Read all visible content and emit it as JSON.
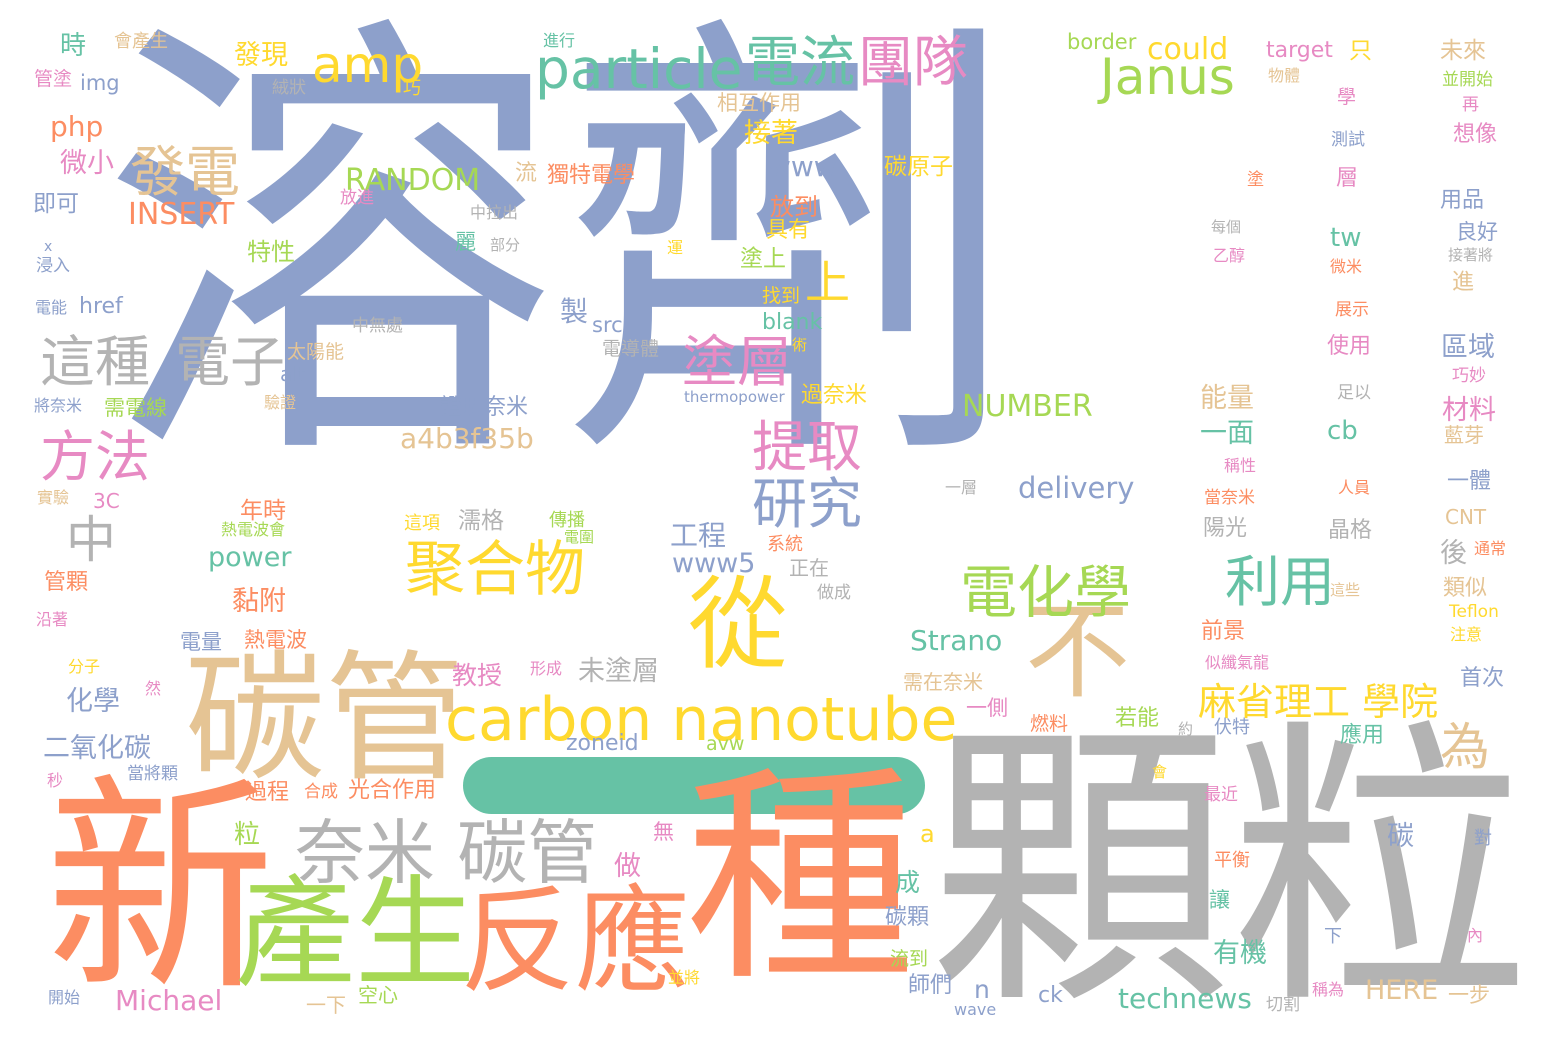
{
  "palette": {
    "slate": "#8DA0CB",
    "orange": "#FC8D62",
    "green": "#66C2A5",
    "lime": "#A6D854",
    "yellow": "#FFD92F",
    "tan": "#E5C494",
    "gray": "#B3B3B3",
    "pink": "#E78AC3"
  },
  "dash_color": "#66C2A5",
  "words": [
    {
      "text": "溶劑",
      "color": "slate"
    },
    {
      "text": "顆粒",
      "color": "gray"
    },
    {
      "text": "新",
      "color": "orange"
    },
    {
      "text": "種",
      "color": "orange"
    },
    {
      "text": "碳管",
      "color": "tan"
    },
    {
      "text": "產生",
      "color": "lime"
    },
    {
      "text": "反應",
      "color": "orange"
    },
    {
      "text": "carbon nanotube",
      "color": "yellow"
    },
    {
      "text": "奈米 碳管",
      "color": "gray"
    },
    {
      "text": "從",
      "color": "yellow"
    },
    {
      "text": "不",
      "color": "tan"
    },
    {
      "text": "particle",
      "color": "green"
    },
    {
      "text": "電流",
      "color": "green"
    },
    {
      "text": "團隊",
      "color": "pink"
    },
    {
      "text": "amp",
      "color": "yellow"
    },
    {
      "text": "Janus",
      "color": "lime"
    },
    {
      "text": "聚合物",
      "color": "yellow"
    },
    {
      "text": "電化學",
      "color": "lime"
    },
    {
      "text": "利用",
      "color": "green"
    },
    {
      "text": "提取",
      "color": "pink"
    },
    {
      "text": "研究",
      "color": "slate"
    },
    {
      "text": "塗層",
      "color": "pink"
    },
    {
      "text": "這種",
      "color": "gray"
    },
    {
      "text": "電子",
      "color": "gray"
    },
    {
      "text": "方法",
      "color": "pink"
    },
    {
      "text": "發電",
      "color": "tan"
    },
    {
      "text": "麻省理工 學院",
      "color": "yellow"
    },
    {
      "text": "為",
      "color": "tan"
    },
    {
      "text": "中",
      "color": "gray"
    },
    {
      "text": "上",
      "color": "yellow"
    },
    {
      "text": "RANDOM",
      "color": "lime"
    },
    {
      "text": "INSERT",
      "color": "orange"
    },
    {
      "text": "NUMBER",
      "color": "lime"
    },
    {
      "text": "a4b3f35b",
      "color": "tan"
    },
    {
      "text": "delivery",
      "color": "slate"
    },
    {
      "text": "Strano",
      "color": "green"
    },
    {
      "text": "Michael",
      "color": "pink"
    },
    {
      "text": "technews",
      "color": "green"
    },
    {
      "text": "HERE",
      "color": "tan"
    },
    {
      "text": "power",
      "color": "green"
    },
    {
      "text": "www5",
      "color": "slate"
    },
    {
      "text": "www",
      "color": "slate"
    },
    {
      "text": "zoneid",
      "color": "slate"
    },
    {
      "text": "avw",
      "color": "lime"
    },
    {
      "text": "could",
      "color": "yellow"
    },
    {
      "text": "border",
      "color": "lime"
    },
    {
      "text": "target",
      "color": "pink"
    },
    {
      "text": "img",
      "color": "slate"
    },
    {
      "text": "php",
      "color": "orange"
    },
    {
      "text": "href",
      "color": "slate"
    },
    {
      "text": "alt",
      "color": "slate"
    },
    {
      "text": "blank",
      "color": "green"
    },
    {
      "text": "src",
      "color": "slate"
    },
    {
      "text": "thermopower",
      "color": "slate"
    },
    {
      "text": "tw",
      "color": "green"
    },
    {
      "text": "cb",
      "color": "green"
    },
    {
      "text": "ck",
      "color": "slate"
    },
    {
      "text": "n",
      "color": "slate"
    },
    {
      "text": "a",
      "color": "yellow"
    },
    {
      "text": "wave",
      "color": "slate"
    },
    {
      "text": "3C",
      "color": "pink"
    },
    {
      "text": "CNT",
      "color": "tan"
    },
    {
      "text": "Teflon",
      "color": "yellow"
    },
    {
      "text": "x",
      "color": "slate"
    },
    {
      "text": "時",
      "color": "green"
    },
    {
      "text": "發現",
      "color": "yellow"
    },
    {
      "text": "會產生",
      "color": "tan"
    },
    {
      "text": "進行",
      "color": "green"
    },
    {
      "text": "管塗",
      "color": "pink"
    },
    {
      "text": "絨狀",
      "color": "gray"
    },
    {
      "text": "巧",
      "color": "yellow"
    },
    {
      "text": "相互作用",
      "color": "tan"
    },
    {
      "text": "接著",
      "color": "yellow"
    },
    {
      "text": "微小",
      "color": "pink"
    },
    {
      "text": "即可",
      "color": "slate"
    },
    {
      "text": "浸入",
      "color": "slate"
    },
    {
      "text": "電能",
      "color": "slate"
    },
    {
      "text": "特性",
      "color": "lime"
    },
    {
      "text": "獨特電學",
      "color": "orange"
    },
    {
      "text": "流",
      "color": "tan"
    },
    {
      "text": "放進",
      "color": "pink"
    },
    {
      "text": "中拉出",
      "color": "gray"
    },
    {
      "text": "麗",
      "color": "green"
    },
    {
      "text": "部分",
      "color": "gray"
    },
    {
      "text": "碳原子",
      "color": "yellow"
    },
    {
      "text": "放到",
      "color": "orange"
    },
    {
      "text": "具有",
      "color": "yellow"
    },
    {
      "text": "塗上",
      "color": "lime"
    },
    {
      "text": "找到",
      "color": "yellow"
    },
    {
      "text": "製",
      "color": "slate"
    },
    {
      "text": "中無處",
      "color": "gray"
    },
    {
      "text": "太陽能",
      "color": "tan"
    },
    {
      "text": "電導體",
      "color": "gray"
    },
    {
      "text": "術",
      "color": "yellow"
    },
    {
      "text": "過奈米",
      "color": "yellow"
    },
    {
      "text": "將奈米",
      "color": "slate"
    },
    {
      "text": "需電線",
      "color": "lime"
    },
    {
      "text": "驗證",
      "color": "tan"
    },
    {
      "text": "證明奈米",
      "color": "slate"
    },
    {
      "text": "實驗",
      "color": "tan"
    },
    {
      "text": "熱電波會",
      "color": "lime"
    },
    {
      "text": "年時",
      "color": "orange"
    },
    {
      "text": "濡格",
      "color": "gray"
    },
    {
      "text": "傳播",
      "color": "lime"
    },
    {
      "text": "電圍",
      "color": "lime"
    },
    {
      "text": "這項",
      "color": "yellow"
    },
    {
      "text": "系統",
      "color": "orange"
    },
    {
      "text": "工程",
      "color": "slate"
    },
    {
      "text": "正在",
      "color": "gray"
    },
    {
      "text": "做成",
      "color": "gray"
    },
    {
      "text": "管顆",
      "color": "orange"
    },
    {
      "text": "黏附",
      "color": "orange"
    },
    {
      "text": "電量",
      "color": "slate"
    },
    {
      "text": "熱電波",
      "color": "orange"
    },
    {
      "text": "沿著",
      "color": "pink"
    },
    {
      "text": "分子",
      "color": "yellow"
    },
    {
      "text": "然",
      "color": "pink"
    },
    {
      "text": "形成",
      "color": "pink"
    },
    {
      "text": "未塗層",
      "color": "gray"
    },
    {
      "text": "教授",
      "color": "pink"
    },
    {
      "text": "需在奈米",
      "color": "tan"
    },
    {
      "text": "化學",
      "color": "slate"
    },
    {
      "text": "一側",
      "color": "pink"
    },
    {
      "text": "燃料",
      "color": "orange"
    },
    {
      "text": "若能",
      "color": "lime"
    },
    {
      "text": "約",
      "color": "gray"
    },
    {
      "text": "伏特",
      "color": "slate"
    },
    {
      "text": "應用",
      "color": "green"
    },
    {
      "text": "二氧化碳",
      "color": "slate"
    },
    {
      "text": "秒",
      "color": "pink"
    },
    {
      "text": "當將顆",
      "color": "slate"
    },
    {
      "text": "過程",
      "color": "orange"
    },
    {
      "text": "合成",
      "color": "orange"
    },
    {
      "text": "光合作用",
      "color": "orange"
    },
    {
      "text": "粒",
      "color": "lime"
    },
    {
      "text": "無",
      "color": "pink"
    },
    {
      "text": "做",
      "color": "pink"
    },
    {
      "text": "成",
      "color": "green"
    },
    {
      "text": "碳顆",
      "color": "slate"
    },
    {
      "text": "流到",
      "color": "lime"
    },
    {
      "text": "師們",
      "color": "slate"
    },
    {
      "text": "一下",
      "color": "tan"
    },
    {
      "text": "空心",
      "color": "lime"
    },
    {
      "text": "開始",
      "color": "slate"
    },
    {
      "text": "並將",
      "color": "yellow"
    },
    {
      "text": "一步",
      "color": "tan"
    },
    {
      "text": "切割",
      "color": "gray"
    },
    {
      "text": "稱為",
      "color": "pink"
    },
    {
      "text": "有機",
      "color": "green"
    },
    {
      "text": "讓",
      "color": "green"
    },
    {
      "text": "平衡",
      "color": "orange"
    },
    {
      "text": "最近",
      "color": "pink"
    },
    {
      "text": "會",
      "color": "yellow"
    },
    {
      "text": "碳",
      "color": "slate"
    },
    {
      "text": "下",
      "color": "slate"
    },
    {
      "text": "內",
      "color": "pink"
    },
    {
      "text": "對",
      "color": "slate"
    },
    {
      "text": "未來",
      "color": "tan"
    },
    {
      "text": "並開始",
      "color": "lime"
    },
    {
      "text": "再",
      "color": "pink"
    },
    {
      "text": "物體",
      "color": "tan"
    },
    {
      "text": "只",
      "color": "yellow"
    },
    {
      "text": "學",
      "color": "pink"
    },
    {
      "text": "想像",
      "color": "pink"
    },
    {
      "text": "測試",
      "color": "slate"
    },
    {
      "text": "層",
      "color": "pink"
    },
    {
      "text": "塗",
      "color": "orange"
    },
    {
      "text": "用品",
      "color": "slate"
    },
    {
      "text": "每個",
      "color": "gray"
    },
    {
      "text": "乙醇",
      "color": "pink"
    },
    {
      "text": "良好",
      "color": "slate"
    },
    {
      "text": "接著將",
      "color": "gray"
    },
    {
      "text": "微米",
      "color": "orange"
    },
    {
      "text": "進",
      "color": "tan"
    },
    {
      "text": "展示",
      "color": "orange"
    },
    {
      "text": "使用",
      "color": "pink"
    },
    {
      "text": "區域",
      "color": "slate"
    },
    {
      "text": "巧妙",
      "color": "pink"
    },
    {
      "text": "足以",
      "color": "gray"
    },
    {
      "text": "能量",
      "color": "tan"
    },
    {
      "text": "一面",
      "color": "green"
    },
    {
      "text": "材料",
      "color": "pink"
    },
    {
      "text": "藍芽",
      "color": "tan"
    },
    {
      "text": "稱性",
      "color": "pink"
    },
    {
      "text": "人員",
      "color": "orange"
    },
    {
      "text": "一層",
      "color": "gray"
    },
    {
      "text": "一體",
      "color": "slate"
    },
    {
      "text": "當奈米",
      "color": "orange"
    },
    {
      "text": "陽光",
      "color": "gray"
    },
    {
      "text": "晶格",
      "color": "gray"
    },
    {
      "text": "後",
      "color": "gray"
    },
    {
      "text": "通常",
      "color": "orange"
    },
    {
      "text": "類似",
      "color": "tan"
    },
    {
      "text": "這些",
      "color": "tan"
    },
    {
      "text": "前景",
      "color": "orange"
    },
    {
      "text": "注意",
      "color": "yellow"
    },
    {
      "text": "似纖氣龍",
      "color": "pink"
    },
    {
      "text": "首次",
      "color": "slate"
    },
    {
      "text": "運",
      "color": "yellow"
    }
  ]
}
